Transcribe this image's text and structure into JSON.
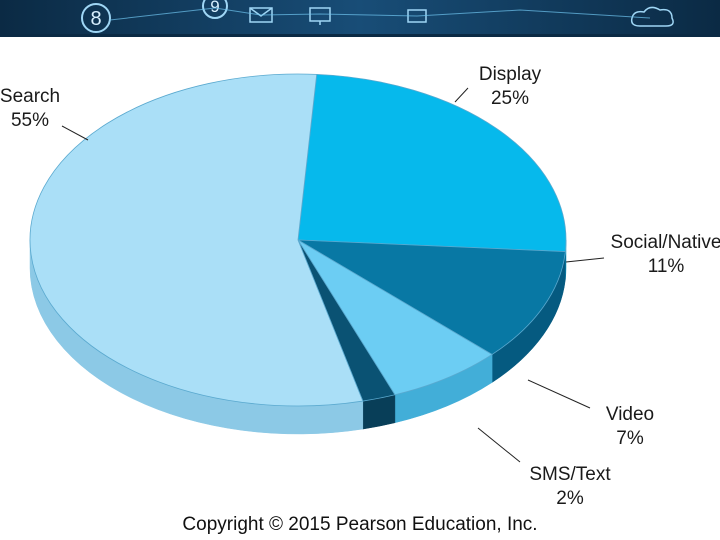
{
  "colors": {
    "banner_dark": "#0b2a44",
    "banner_mid": "#184d77",
    "banner_glow": "#5fb4e8"
  },
  "banner": {
    "icons": [
      "number-8-icon",
      "number-9-icon",
      "mail-icon",
      "computer-icon",
      "cloud-icon"
    ]
  },
  "chart_data": {
    "type": "pie",
    "style": "3d",
    "title": "",
    "slices": [
      {
        "label": "Display",
        "percent_text": "25%",
        "value": 25,
        "color": "#06b9ec",
        "side": "#0592bd"
      },
      {
        "label": "Social/Native",
        "percent_text": "11%",
        "value": 11,
        "color": "#0878a4",
        "side": "#055a80"
      },
      {
        "label": "Video",
        "percent_text": "7%",
        "value": 7,
        "color": "#6ccdf3",
        "side": "#42aed8"
      },
      {
        "label": "SMS/Text",
        "percent_text": "2%",
        "value": 2,
        "color": "#0a5273",
        "side": "#083e58"
      },
      {
        "label": "Search",
        "percent_text": "55%",
        "value": 55,
        "color": "#aadff7",
        "side": "#8cc9e6"
      }
    ]
  },
  "footer": {
    "copyright": "Copyright © 2015 Pearson Education, Inc."
  }
}
